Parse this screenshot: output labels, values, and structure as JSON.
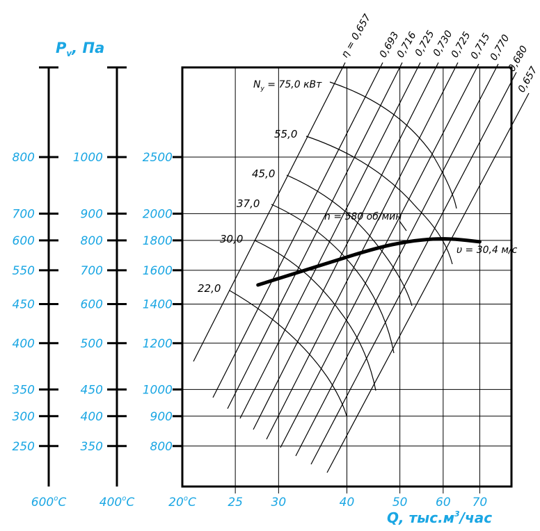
{
  "chart_data": {
    "type": "line",
    "title": "",
    "ylabel": "P",
    "ylabel_sub": "v",
    "ylabel_unit": ", Па",
    "xlabel": "Q, тыс.м",
    "xlabel_sup": "3",
    "xlabel_tail": "/час",
    "xlim": [
      20,
      80
    ],
    "x_ticks": [
      "25",
      "30",
      "40",
      "50",
      "60",
      "70"
    ],
    "x_tick_values": [
      25,
      30,
      40,
      50,
      60,
      70
    ],
    "temperature_labels": [
      "600°C",
      "400°C",
      "20°C"
    ],
    "y_axis_20C": {
      "ticks": [
        "800",
        "900",
        "1000",
        "1200",
        "1400",
        "1600",
        "1800",
        "2000",
        "2500"
      ],
      "values": [
        800,
        900,
        1000,
        1200,
        1400,
        1600,
        1800,
        2000,
        2500
      ]
    },
    "y_axis_400C": {
      "ticks": [
        "350",
        "400",
        "450",
        "500",
        "600",
        "700",
        "800",
        "900",
        "1000"
      ],
      "values": [
        350,
        400,
        450,
        500,
        600,
        700,
        800,
        900,
        1000
      ]
    },
    "y_axis_600C": {
      "ticks": [
        "250",
        "300",
        "350",
        "400",
        "450",
        "550",
        "600",
        "700",
        "800"
      ],
      "values": [
        250,
        300,
        350,
        400,
        450,
        550,
        600,
        700,
        800
      ]
    },
    "grid_y_values": [
      800,
      900,
      1000,
      1200,
      1400,
      1600,
      1800,
      2000,
      2500
    ],
    "fan_curve": {
      "label": "n = 580 об/мин",
      "x": [
        27.5,
        35,
        45,
        52,
        58,
        63,
        70
      ],
      "y": [
        1510,
        1620,
        1745,
        1795,
        1812,
        1810,
        1790
      ]
    },
    "velocity_label": "υ = 30,4 м/с",
    "efficiency_labels": [
      "η = 0,657",
      "0,693",
      "0,716",
      "0,725",
      "0,730",
      "0,725",
      "0,715",
      "0,770",
      "0,680",
      "0,657"
    ],
    "power_labels": [
      "22,0",
      "30,0",
      "37,0",
      "45,0",
      "55,0"
    ],
    "power_top_label": "N",
    "power_top_sub": "у",
    "power_top_value": " = 75,0 кВт"
  }
}
